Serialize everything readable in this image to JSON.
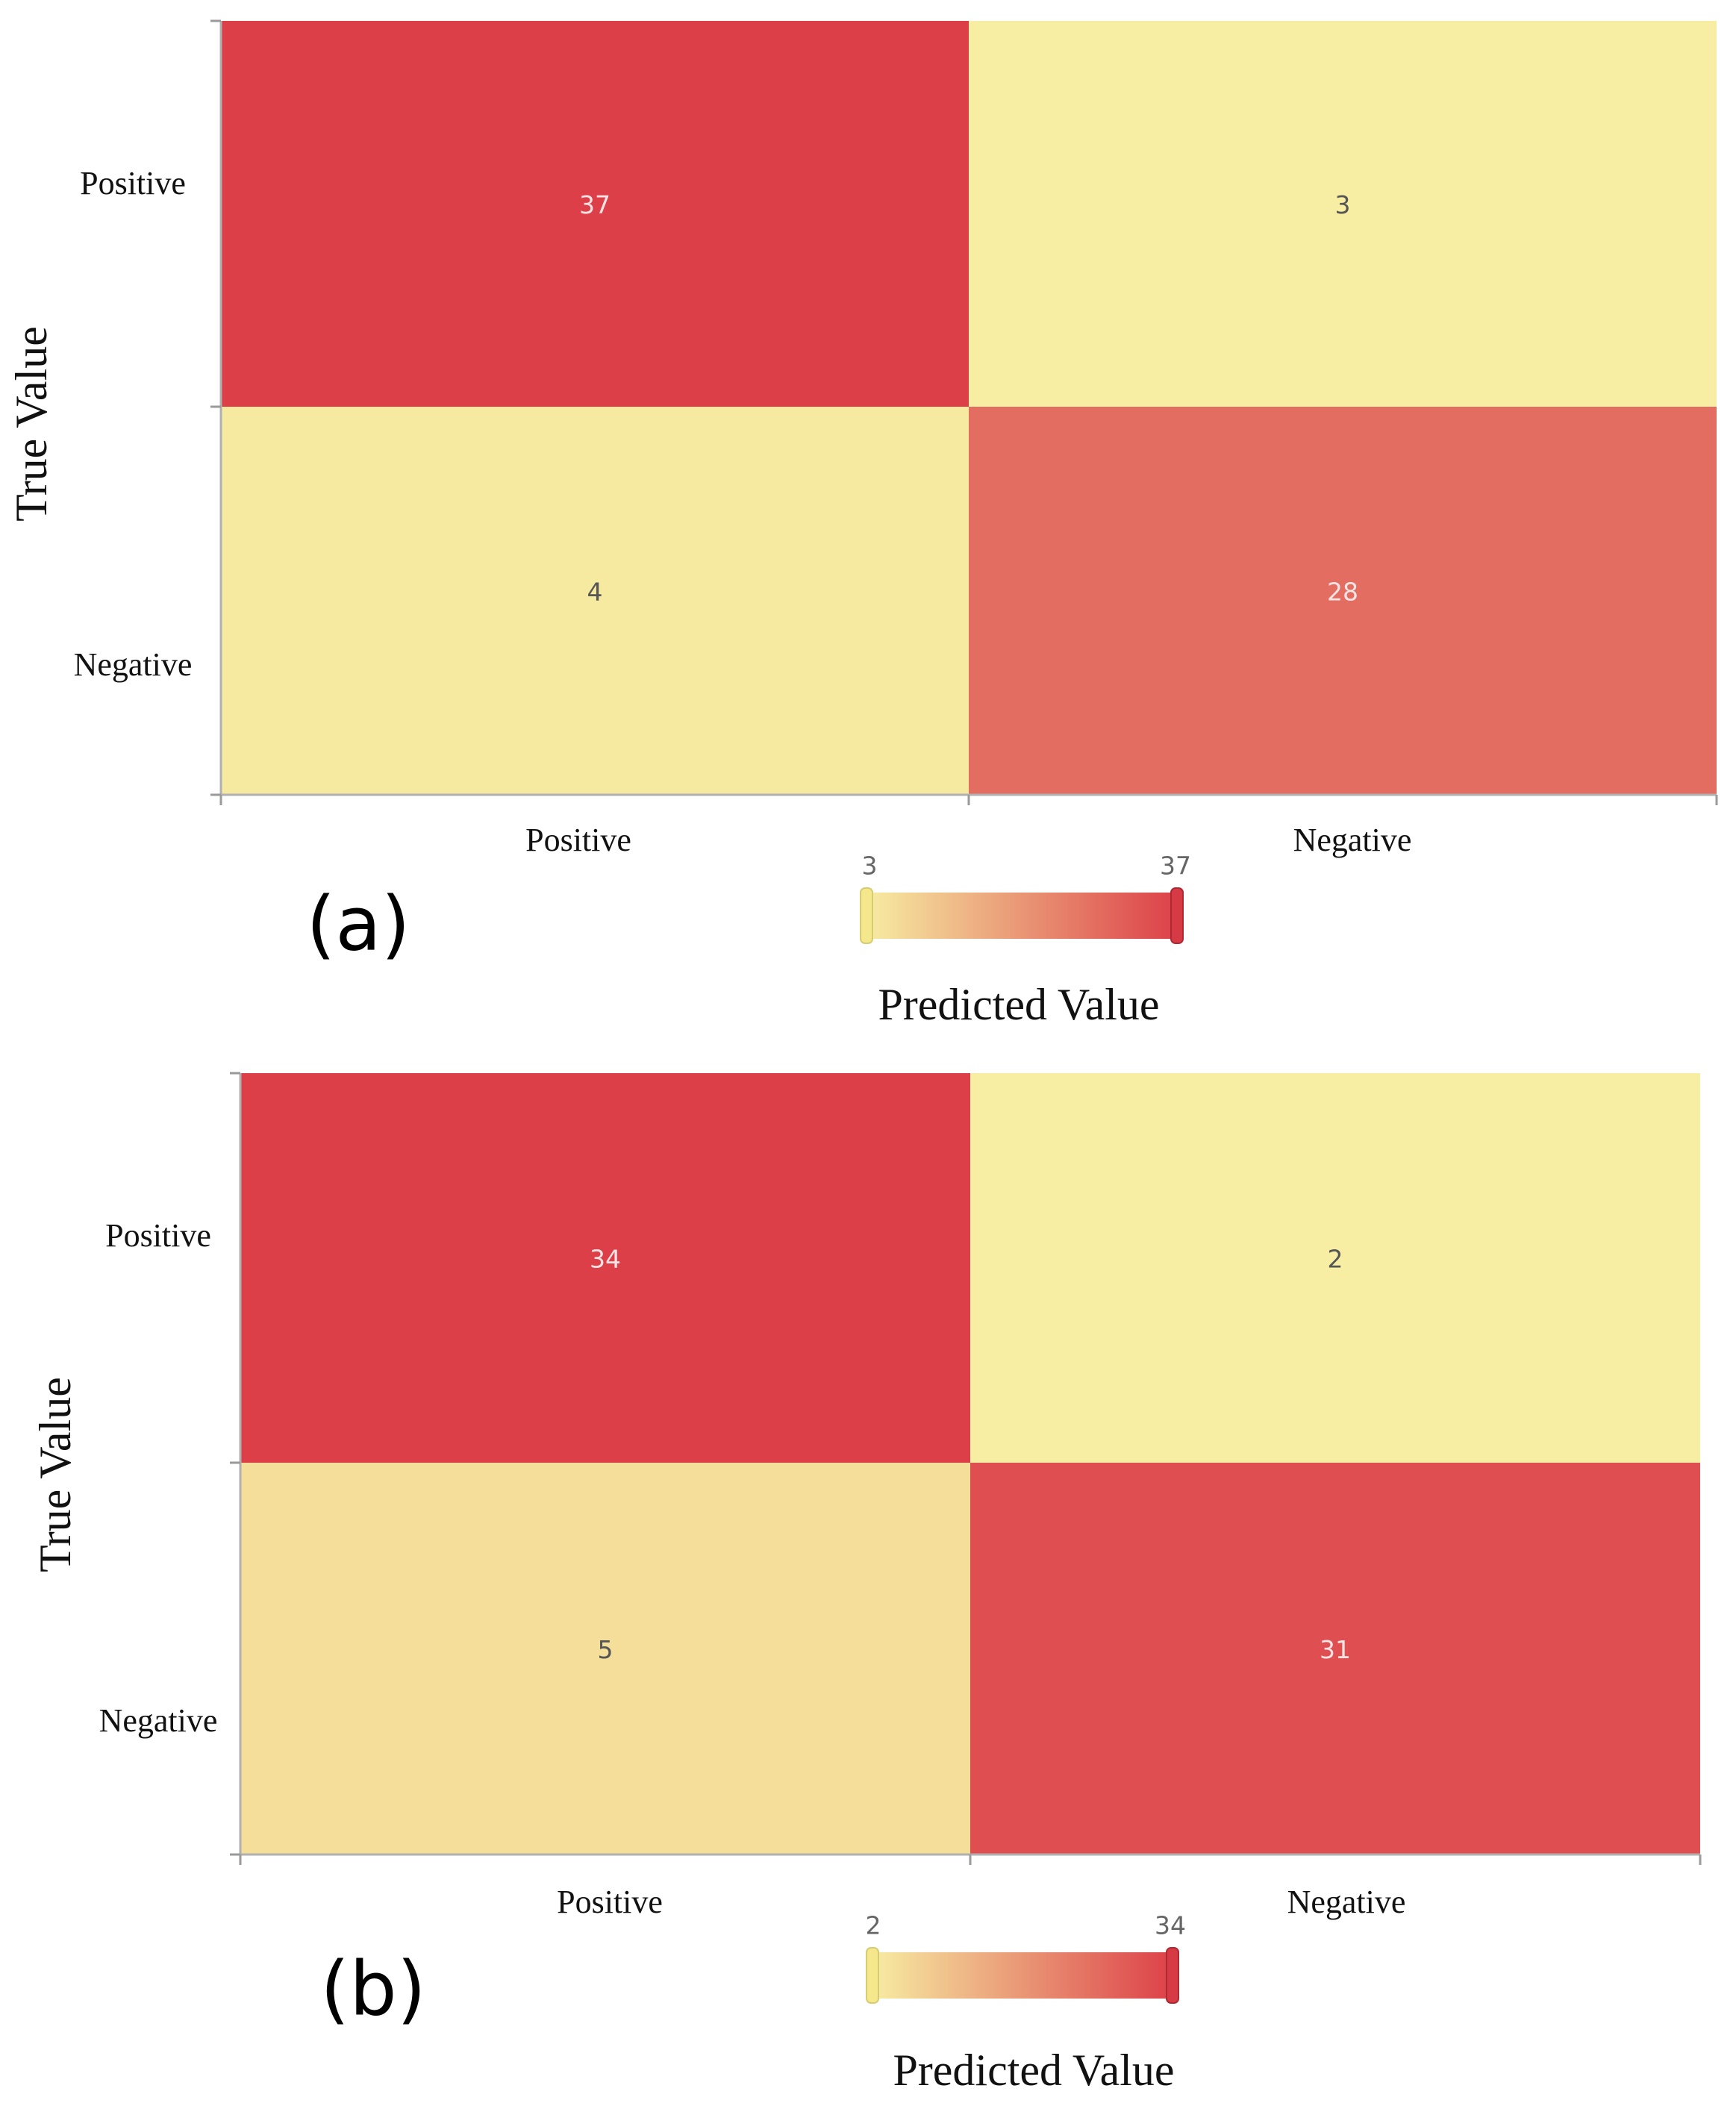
{
  "chart_data": [
    {
      "type": "heatmap",
      "panel_label": "(a)",
      "row_labels": [
        "Positive",
        "Negative"
      ],
      "col_labels": [
        "Positive",
        "Negative"
      ],
      "values": [
        [
          37,
          3
        ],
        [
          4,
          28
        ]
      ],
      "ylabel": "True Value",
      "xlabel": "Predicted Value",
      "color_range": [
        3,
        37
      ],
      "colorbar_min_label": "3",
      "colorbar_max_label": "37",
      "colormap": [
        "#f7eea3",
        "#dc3f48"
      ]
    },
    {
      "type": "heatmap",
      "panel_label": "(b)",
      "row_labels": [
        "Positive",
        "Negative"
      ],
      "col_labels": [
        "Positive",
        "Negative"
      ],
      "values": [
        [
          34,
          2
        ],
        [
          5,
          31
        ]
      ],
      "ylabel": "True Value",
      "xlabel": "Predicted Value",
      "color_range": [
        2,
        34
      ],
      "colorbar_min_label": "2",
      "colorbar_max_label": "34",
      "colormap": [
        "#f7eea3",
        "#dc3f48"
      ]
    }
  ]
}
